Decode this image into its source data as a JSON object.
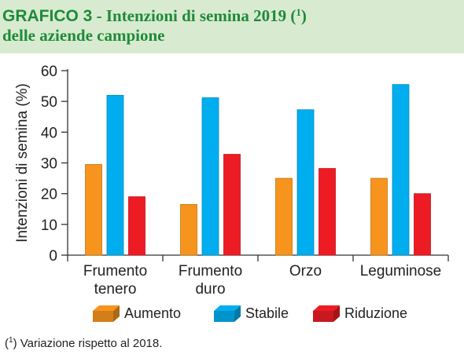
{
  "header": {
    "title_lead": "GRAFICO 3",
    "title_rest": " - Intenzioni di semina 2019 (",
    "title_sup": "1",
    "title_close": ")",
    "title_line2": "delle aziende campione",
    "background": "#d8ebd0",
    "title_color": "#1f8a3a"
  },
  "chart_data": {
    "type": "bar",
    "categories": [
      [
        "Frumento",
        "tenero"
      ],
      [
        "Frumento",
        "duro"
      ],
      [
        "Orzo"
      ],
      [
        "Leguminose"
      ]
    ],
    "series": [
      {
        "name": "Aumento",
        "color": "#f7941d",
        "values": [
          29.5,
          16.5,
          25,
          25
        ]
      },
      {
        "name": "Stabile",
        "color": "#00aeef",
        "values": [
          52,
          51.2,
          47.3,
          55.5
        ]
      },
      {
        "name": "Riduzione",
        "color": "#ed1c24",
        "values": [
          19,
          32.8,
          28.2,
          20
        ]
      }
    ],
    "ylabel": "Intenzioni di semina (%)",
    "ylim": [
      0,
      60
    ],
    "yticks": [
      0,
      10,
      20,
      30,
      40,
      50,
      60
    ],
    "grid": false,
    "legend_position": "bottom"
  },
  "legend": {
    "items": [
      {
        "label": "Aumento",
        "color": "#f7941d"
      },
      {
        "label": "Stabile",
        "color": "#00aeef"
      },
      {
        "label": "Riduzione",
        "color": "#ed1c24"
      }
    ]
  },
  "footnote": {
    "sup": "1",
    "text": ") Variazione rispetto al 2018.",
    "open": "("
  }
}
